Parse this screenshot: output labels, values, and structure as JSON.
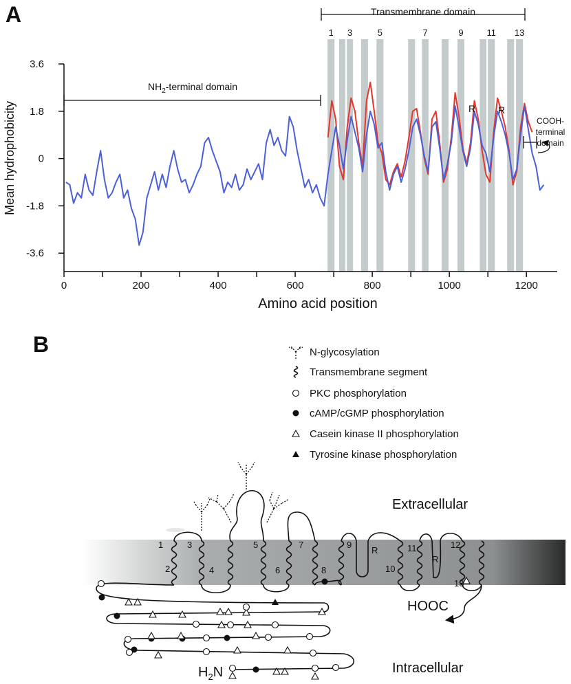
{
  "chart_data": {
    "type": "line",
    "panel_label": "A",
    "xlabel": "Amino acid position",
    "ylabel": "Mean hydrophobicity",
    "xlim": [
      0,
      1280
    ],
    "ylim": [
      -4.3,
      3.6
    ],
    "xticks": [
      0,
      200,
      400,
      600,
      800,
      1000,
      1200
    ],
    "xminor_ticks": [
      100,
      300,
      500,
      700,
      900,
      1100
    ],
    "yticks": [
      3.6,
      1.8,
      0,
      -1.8,
      -3.6
    ],
    "tm_segments": [
      [
        684,
        702
      ],
      [
        714,
        730
      ],
      [
        734,
        750
      ],
      [
        771,
        789
      ],
      [
        811,
        829
      ],
      [
        893,
        911
      ],
      [
        929,
        946
      ],
      [
        980,
        998
      ],
      [
        1021,
        1039
      ],
      [
        1079,
        1096
      ],
      [
        1100,
        1118
      ],
      [
        1150,
        1168
      ],
      [
        1173,
        1191
      ]
    ],
    "tm_color": "#c3cbcc",
    "tm_labels": [
      1,
      3,
      5,
      7,
      9,
      11,
      13
    ],
    "annotations": {
      "tm_domain": "Transmembrane domain",
      "nh2": [
        "NH",
        "2",
        "-terminal domain"
      ],
      "cooh": [
        "COOH-",
        "terminal",
        "domain"
      ],
      "r_labels": [
        "R",
        "R"
      ]
    },
    "x": [
      5,
      15,
      25,
      35,
      45,
      55,
      65,
      75,
      85,
      95,
      105,
      115,
      125,
      135,
      145,
      155,
      165,
      175,
      185,
      195,
      205,
      215,
      225,
      235,
      245,
      255,
      265,
      275,
      285,
      295,
      305,
      315,
      325,
      335,
      345,
      355,
      365,
      375,
      385,
      395,
      405,
      415,
      425,
      435,
      445,
      455,
      465,
      475,
      485,
      495,
      505,
      515,
      525,
      535,
      545,
      555,
      565,
      575,
      585,
      595,
      605,
      615,
      625,
      635,
      645,
      655,
      665,
      675,
      685,
      695,
      705,
      715,
      725,
      735,
      745,
      755,
      765,
      775,
      785,
      795,
      805,
      815,
      825,
      835,
      845,
      855,
      865,
      875,
      885,
      895,
      905,
      915,
      925,
      935,
      945,
      955,
      965,
      975,
      985,
      995,
      1005,
      1015,
      1025,
      1035,
      1045,
      1055,
      1065,
      1075,
      1085,
      1095,
      1105,
      1115,
      1125,
      1135,
      1145,
      1155,
      1165,
      1175,
      1185,
      1195,
      1205,
      1215,
      1225,
      1235,
      1245
    ],
    "series": [
      {
        "color": "#e8352a",
        "values": [
          null,
          null,
          null,
          null,
          null,
          null,
          null,
          null,
          null,
          null,
          null,
          null,
          null,
          null,
          null,
          null,
          null,
          null,
          null,
          null,
          null,
          null,
          null,
          null,
          null,
          null,
          null,
          null,
          null,
          null,
          null,
          null,
          null,
          null,
          null,
          null,
          null,
          null,
          null,
          null,
          null,
          null,
          null,
          null,
          null,
          null,
          null,
          null,
          null,
          null,
          null,
          null,
          null,
          null,
          null,
          null,
          null,
          null,
          null,
          null,
          null,
          null,
          null,
          null,
          null,
          null,
          null,
          null,
          0.8,
          2.2,
          1.5,
          -0.3,
          -0.8,
          1.2,
          2.3,
          1.8,
          0.6,
          -0.3,
          2.2,
          2.9,
          1.8,
          0.6,
          0.2,
          -0.8,
          -1.0,
          -0.5,
          -0.2,
          -0.7,
          -0.1,
          0.8,
          1.8,
          1.9,
          1.0,
          0.0,
          -0.6,
          1.5,
          1.8,
          0.6,
          -0.9,
          -0.4,
          0.8,
          2.5,
          1.6,
          0.4,
          -0.2,
          0.6,
          2.2,
          1.5,
          0.3,
          -0.6,
          -0.9,
          1.0,
          2.3,
          1.8,
          1.2,
          0.3,
          -1.0,
          -0.5,
          1.2,
          2.1,
          1.4,
          1.0,
          null,
          null,
          null
        ]
      },
      {
        "color": "#4a5fd8",
        "values": [
          -0.9,
          -1.0,
          -1.7,
          -1.3,
          -1.5,
          -0.6,
          -1.2,
          -1.4,
          -0.5,
          0.3,
          -0.8,
          -1.5,
          -1.3,
          -0.9,
          -0.6,
          -1.5,
          -1.2,
          -1.9,
          -2.3,
          -3.3,
          -2.8,
          -1.5,
          -1.0,
          -0.5,
          -1.2,
          -0.6,
          -1.1,
          -0.3,
          0.3,
          -0.4,
          -0.9,
          -0.8,
          -1.3,
          -1.0,
          -0.6,
          -0.3,
          0.6,
          0.8,
          0.3,
          -0.1,
          -0.5,
          -1.3,
          -0.9,
          -1.1,
          -0.6,
          -1.2,
          -1.0,
          -0.4,
          -0.8,
          -0.5,
          -0.2,
          -0.8,
          0.6,
          1.1,
          0.5,
          0.8,
          0.3,
          0.1,
          1.6,
          1.2,
          0.3,
          -0.4,
          -1.1,
          -0.8,
          -1.3,
          -1.0,
          -1.5,
          -1.8,
          -0.6,
          0.3,
          1.2,
          0.5,
          -0.4,
          0.7,
          1.6,
          1.0,
          0.4,
          -0.5,
          0.9,
          1.8,
          1.3,
          0.4,
          0.6,
          -0.5,
          -1.2,
          -0.6,
          -0.3,
          -0.9,
          -0.4,
          0.3,
          1.2,
          1.5,
          0.9,
          0.1,
          -0.5,
          1.2,
          1.4,
          0.4,
          -0.8,
          -0.2,
          0.6,
          2.0,
          1.2,
          0.3,
          -0.3,
          0.4,
          1.8,
          1.3,
          0.5,
          0.2,
          -0.5,
          0.8,
          1.8,
          1.4,
          0.9,
          0.2,
          -0.8,
          -0.4,
          0.9,
          2.0,
          1.1,
          0.2,
          -0.3,
          -1.2,
          -1.0
        ]
      }
    ]
  },
  "diagram": {
    "panel_label": "B",
    "legend": [
      "N-glycosylation",
      "Transmembrane segment",
      "PKC phosphorylation",
      "cAMP/cGMP phosphorylation",
      "Casein kinase II phosphorylation",
      "Tyrosine kinase phosphorylation"
    ],
    "extracellular": "Extracellular",
    "intracellular": "Intracellular",
    "cterm": "HOOC",
    "nterm": [
      "H",
      "2",
      "N"
    ],
    "segment_labels": [
      1,
      2,
      3,
      4,
      5,
      6,
      7,
      8,
      9,
      10,
      11,
      12,
      13
    ],
    "r_labels": [
      "R",
      "R"
    ]
  }
}
